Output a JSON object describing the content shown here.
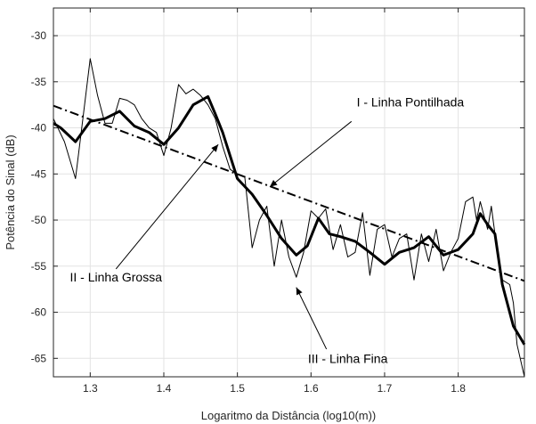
{
  "chart_data": {
    "type": "line",
    "xlabel": "Logaritmo da Distância (log10(m))",
    "ylabel": "Potência do Sinal (dB)",
    "xlim": [
      1.25,
      1.89
    ],
    "ylim": [
      -67,
      -27
    ],
    "xticks": [
      1.3,
      1.4,
      1.5,
      1.6,
      1.7,
      1.8
    ],
    "xtick_labels": [
      "1.3",
      "1.4",
      "1.5",
      "1.6",
      "1.7",
      "1.8"
    ],
    "yticks": [
      -30,
      -35,
      -40,
      -45,
      -50,
      -55,
      -60,
      -65
    ],
    "ytick_labels": [
      "-30",
      "-35",
      "-40",
      "-45",
      "-50",
      "-55",
      "-60",
      "-65"
    ],
    "grid": true,
    "series": [
      {
        "name": "I - Linha Pontilhada",
        "style": "dashdot",
        "color": "#000000",
        "x": [
          1.25,
          1.89
        ],
        "y": [
          -37.6,
          -56.6
        ]
      },
      {
        "name": "II - Linha Grossa",
        "style": "thick",
        "color": "#000000",
        "x": [
          1.25,
          1.26,
          1.28,
          1.3,
          1.32,
          1.34,
          1.36,
          1.38,
          1.4,
          1.42,
          1.44,
          1.46,
          1.47,
          1.48,
          1.5,
          1.52,
          1.54,
          1.56,
          1.58,
          1.595,
          1.61,
          1.625,
          1.64,
          1.66,
          1.68,
          1.7,
          1.72,
          1.74,
          1.76,
          1.78,
          1.8,
          1.82,
          1.83,
          1.84,
          1.85,
          1.86,
          1.875,
          1.89
        ],
        "y": [
          -39.5,
          -40.0,
          -41.5,
          -39.3,
          -39.0,
          -38.2,
          -39.8,
          -40.5,
          -41.8,
          -40.0,
          -37.5,
          -36.6,
          -38.5,
          -40.5,
          -45.5,
          -47.2,
          -49.5,
          -52.0,
          -53.8,
          -52.8,
          -49.8,
          -51.5,
          -51.8,
          -52.3,
          -53.5,
          -54.8,
          -53.5,
          -53.0,
          -51.8,
          -53.8,
          -53.2,
          -51.5,
          -49.3,
          -50.5,
          -51.5,
          -57.0,
          -61.5,
          -63.5
        ]
      },
      {
        "name": "III - Linha Fina",
        "style": "thin",
        "color": "#000000",
        "x": [
          1.25,
          1.265,
          1.28,
          1.29,
          1.3,
          1.31,
          1.32,
          1.33,
          1.34,
          1.35,
          1.36,
          1.37,
          1.38,
          1.39,
          1.4,
          1.41,
          1.42,
          1.43,
          1.44,
          1.45,
          1.46,
          1.47,
          1.48,
          1.49,
          1.5,
          1.51,
          1.52,
          1.53,
          1.54,
          1.55,
          1.56,
          1.57,
          1.58,
          1.59,
          1.6,
          1.61,
          1.62,
          1.63,
          1.64,
          1.65,
          1.66,
          1.67,
          1.68,
          1.69,
          1.7,
          1.71,
          1.72,
          1.73,
          1.74,
          1.75,
          1.76,
          1.77,
          1.78,
          1.79,
          1.8,
          1.81,
          1.82,
          1.825,
          1.83,
          1.835,
          1.84,
          1.845,
          1.85,
          1.86,
          1.87,
          1.875,
          1.88,
          1.89
        ],
        "y": [
          -39.0,
          -41.5,
          -45.5,
          -39.0,
          -32.5,
          -36.5,
          -39.5,
          -39.5,
          -36.8,
          -37.0,
          -37.5,
          -39.0,
          -40.0,
          -40.5,
          -43.0,
          -40.0,
          -35.3,
          -36.3,
          -35.8,
          -36.5,
          -37.5,
          -39.0,
          -42.0,
          -44.5,
          -45.0,
          -45.3,
          -53.0,
          -50.0,
          -48.5,
          -55.0,
          -50.0,
          -54.0,
          -56.2,
          -53.5,
          -49.0,
          -49.8,
          -48.8,
          -53.2,
          -50.5,
          -54.0,
          -53.5,
          -49.2,
          -56.0,
          -51.0,
          -50.5,
          -54.0,
          -52.0,
          -51.5,
          -56.5,
          -51.5,
          -54.5,
          -51.0,
          -55.5,
          -53.5,
          -52.0,
          -48.0,
          -47.5,
          -50.0,
          -48.0,
          -49.5,
          -51.0,
          -48.5,
          -51.5,
          -56.5,
          -57.0,
          -59.0,
          -63.5,
          -67.0
        ]
      }
    ],
    "annotations": [
      {
        "text": "I - Linha Pontilhada",
        "text_x": 1.735,
        "text_y": -37.2,
        "arrow_from_x": 1.655,
        "arrow_from_y": -39.3,
        "arrow_to_x": 1.544,
        "arrow_to_y": -46.4
      },
      {
        "text": "II - Linha Grossa",
        "text_x": 1.335,
        "text_y": -56.2,
        "arrow_from_x": 1.335,
        "arrow_from_y": -55.3,
        "arrow_to_x": 1.474,
        "arrow_to_y": -41.8
      },
      {
        "text": "III - Linha Fina",
        "text_x": 1.65,
        "text_y": -65.0,
        "arrow_from_x": 1.621,
        "arrow_from_y": -64.0,
        "arrow_to_x": 1.58,
        "arrow_to_y": -57.3
      }
    ]
  }
}
